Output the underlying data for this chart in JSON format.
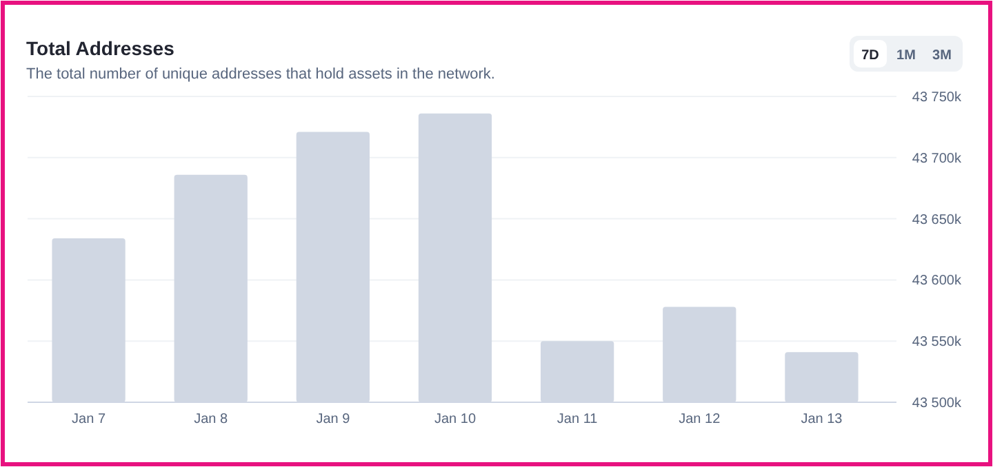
{
  "chart_data": {
    "type": "bar",
    "title": "Total Addresses",
    "subtitle": "The total number of unique addresses that hold assets in the network.",
    "categories": [
      "Jan 7",
      "Jan 8",
      "Jan 9",
      "Jan 10",
      "Jan 11",
      "Jan 12",
      "Jan 13"
    ],
    "values": [
      43634,
      43686,
      43721,
      43736,
      43550,
      43578,
      43541
    ],
    "color": "#d0d7e3",
    "ylim": [
      43500,
      43750
    ],
    "yticks": [
      {
        "value": 43500,
        "label": "43 500k"
      },
      {
        "value": 43550,
        "label": "43 550k"
      },
      {
        "value": 43600,
        "label": "43 600k"
      },
      {
        "value": 43650,
        "label": "43 650k"
      },
      {
        "value": 43700,
        "label": "43 700k"
      },
      {
        "value": 43750,
        "label": "43 750k"
      }
    ],
    "grid": "y",
    "annotations": [
      "7D",
      "1M",
      "3M"
    ]
  }
}
